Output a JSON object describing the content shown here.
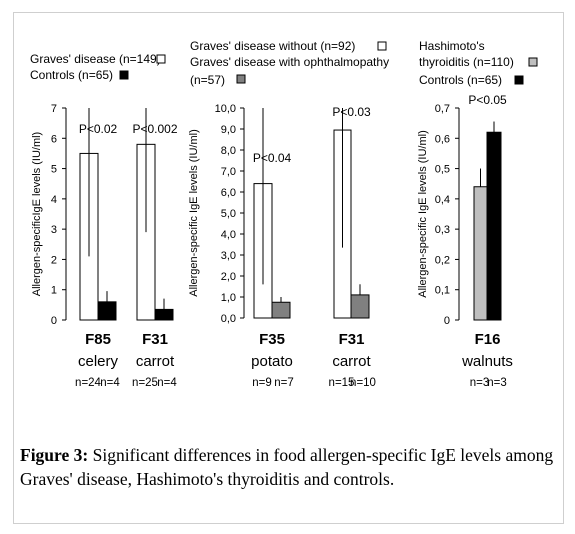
{
  "legend": {
    "panel1": [
      {
        "label": "Graves' disease (n=149)",
        "swatch": "white"
      },
      {
        "label": "Controls (n=65)",
        "swatch": "black"
      }
    ],
    "panel2": [
      {
        "label": "Graves' disease without (n=92)",
        "swatch": "white"
      },
      {
        "label": "Graves' disease with ophthalmopathy",
        "label2": "(n=57)",
        "swatch": "gray"
      }
    ],
    "panel3": [
      {
        "label": "Hashimoto's",
        "label2": "thyroiditis (n=110)",
        "swatch": "lightgray"
      },
      {
        "label": "Controls (n=65)",
        "swatch": "black"
      }
    ]
  },
  "caption": {
    "label": "Figure 3:",
    "text": " Significant differences in food allergen-specific IgE levels among Graves' disease, Hashimoto's thyroiditis and controls."
  },
  "colors": {
    "white": "#ffffff",
    "black": "#000000",
    "gray": "#808080",
    "lightgray": "#bfbfbf"
  },
  "chart_data": [
    {
      "type": "bar",
      "ylabel": "Allergen-specificIgE levels (IU/ml)",
      "ylim": [
        0,
        7
      ],
      "yticks": [
        "0",
        "1",
        "2",
        "3",
        "4",
        "5",
        "6",
        "7"
      ],
      "groups": [
        {
          "code": "F85",
          "name": "celery",
          "n": [
            "n=24",
            "n=4"
          ],
          "pvalue": "P<0.02",
          "bars": [
            {
              "value": 5.5,
              "err": 3.4,
              "color": "white"
            },
            {
              "value": 0.6,
              "err": 0.35,
              "color": "black"
            }
          ]
        },
        {
          "code": "F31",
          "name": "carrot",
          "n": [
            "n=25",
            "n=4"
          ],
          "pvalue": "P<0.002",
          "bars": [
            {
              "value": 5.8,
              "err": 2.9,
              "color": "white"
            },
            {
              "value": 0.35,
              "err": 0.35,
              "color": "black"
            }
          ]
        }
      ]
    },
    {
      "type": "bar",
      "ylabel": "Allergen-specific IgE levels (IU/ml)",
      "ylim": [
        0,
        10
      ],
      "yticks": [
        "0,0",
        "1,0",
        "2,0",
        "3,0",
        "4,0",
        "5,0",
        "6,0",
        "7,0",
        "8,0",
        "9,0",
        "10,0"
      ],
      "groups": [
        {
          "code": "F35",
          "name": "potato",
          "n": [
            "n=9",
            "n=7"
          ],
          "pvalue": "P<0.04",
          "bars": [
            {
              "value": 6.4,
              "err": 4.8,
              "color": "white"
            },
            {
              "value": 0.75,
              "err": 0.25,
              "color": "gray"
            }
          ]
        },
        {
          "code": "F31",
          "name": "carrot",
          "n": [
            "n=15",
            "n=10"
          ],
          "pvalue": "P<0.03",
          "bars": [
            {
              "value": 8.95,
              "err": 5.6,
              "color": "white"
            },
            {
              "value": 1.1,
              "err": 0.5,
              "color": "gray"
            }
          ]
        }
      ]
    },
    {
      "type": "bar",
      "ylabel": "Allergen-specific IgE levels (IU/ml)",
      "ylim": [
        0,
        0.7
      ],
      "yticks": [
        "0",
        "0,1",
        "0,2",
        "0,3",
        "0,4",
        "0,5",
        "0,6",
        "0,7"
      ],
      "groups": [
        {
          "code": "F16",
          "name": "walnuts",
          "n": [
            "n=3",
            "n=3"
          ],
          "pvalue": "P<0.05",
          "bars": [
            {
              "value": 0.44,
              "err": 0.06,
              "color": "lightgray"
            },
            {
              "value": 0.62,
              "err": 0.035,
              "color": "black"
            }
          ]
        }
      ]
    }
  ]
}
